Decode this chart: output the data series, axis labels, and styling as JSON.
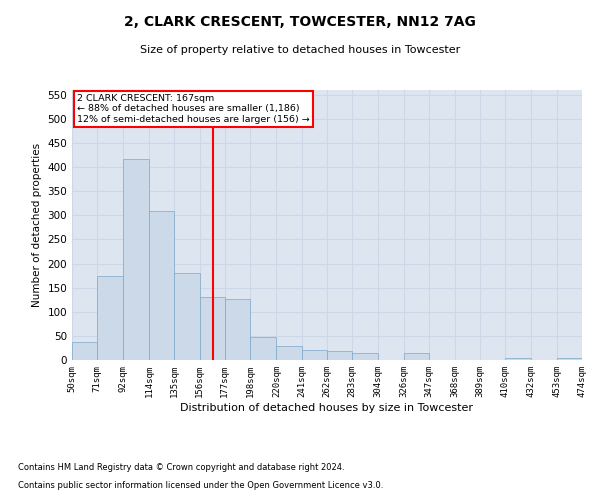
{
  "title1": "2, CLARK CRESCENT, TOWCESTER, NN12 7AG",
  "title2": "Size of property relative to detached houses in Towcester",
  "xlabel": "Distribution of detached houses by size in Towcester",
  "ylabel": "Number of detached properties",
  "footnote1": "Contains HM Land Registry data © Crown copyright and database right 2024.",
  "footnote2": "Contains public sector information licensed under the Open Government Licence v3.0.",
  "annotation_title": "2 CLARK CRESCENT: 167sqm",
  "annotation_line2": "← 88% of detached houses are smaller (1,186)",
  "annotation_line3": "12% of semi-detached houses are larger (156) →",
  "property_size": 167,
  "bar_color": "#ccd9e8",
  "bar_edge_color": "#7da8c8",
  "vline_color": "red",
  "annotation_box_color": "red",
  "grid_color": "#ccd8e8",
  "background_color": "#dde6f0",
  "bins": [
    50,
    71,
    92,
    114,
    135,
    156,
    177,
    198,
    220,
    241,
    262,
    283,
    304,
    326,
    347,
    368,
    389,
    410,
    432,
    453,
    474
  ],
  "counts": [
    38,
    174,
    416,
    309,
    180,
    130,
    127,
    48,
    30,
    20,
    18,
    15,
    0,
    15,
    0,
    0,
    0,
    5,
    0,
    5
  ],
  "ylim": [
    0,
    560
  ],
  "yticks": [
    0,
    50,
    100,
    150,
    200,
    250,
    300,
    350,
    400,
    450,
    500,
    550
  ]
}
